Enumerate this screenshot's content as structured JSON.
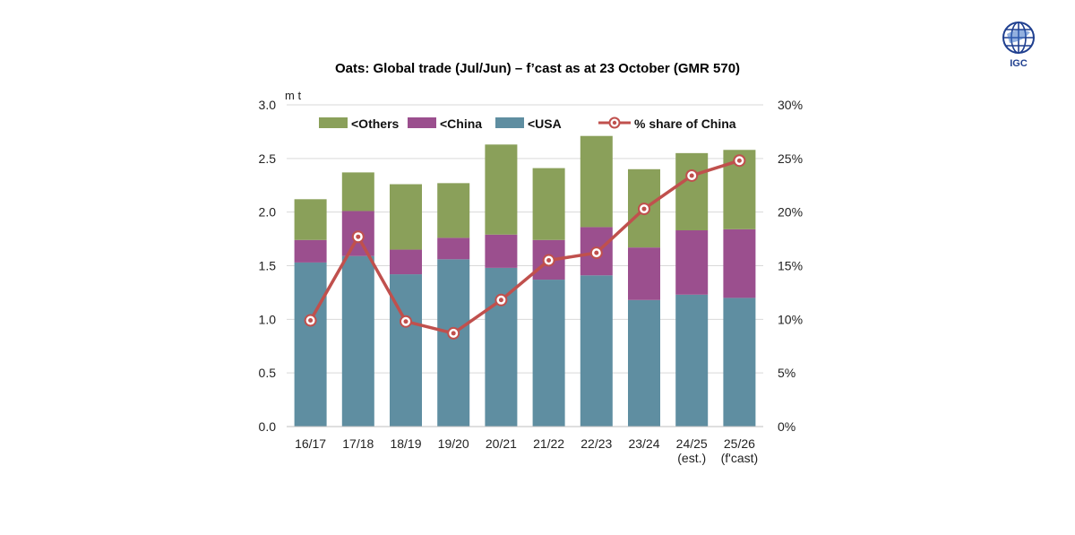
{
  "logo": {
    "text": "IGC"
  },
  "colors": {
    "others": "#8aa05a",
    "china": "#9b4f8e",
    "usa": "#5f8ea1",
    "share_line": "#c0504d",
    "grid": "#d9d9d9"
  },
  "chart_data": {
    "type": "bar",
    "stacked": true,
    "title": "Oats: Global trade (Jul/Jun) – f’cast as at 23 October (GMR 570)",
    "ylabel": "m t",
    "ylim": [
      0,
      3.0
    ],
    "y_ticks": [
      "0.0",
      "0.5",
      "1.0",
      "1.5",
      "2.0",
      "2.5",
      "3.0"
    ],
    "y2lim": [
      0,
      30
    ],
    "y2_ticks": [
      "0%",
      "5%",
      "10%",
      "15%",
      "20%",
      "25%",
      "30%"
    ],
    "grid": true,
    "legend_position": "top",
    "categories": [
      [
        "16/17"
      ],
      [
        "17/18"
      ],
      [
        "18/19"
      ],
      [
        "19/20"
      ],
      [
        "20/21"
      ],
      [
        "21/22"
      ],
      [
        "22/23"
      ],
      [
        "23/24"
      ],
      [
        "24/25",
        "(est.)"
      ],
      [
        "25/26",
        "(f'cast)"
      ]
    ],
    "series": [
      {
        "name": "<USA",
        "key": "usa",
        "values": [
          1.53,
          1.59,
          1.42,
          1.56,
          1.48,
          1.37,
          1.41,
          1.18,
          1.23,
          1.2
        ]
      },
      {
        "name": "<China",
        "key": "china",
        "values": [
          0.21,
          0.42,
          0.23,
          0.2,
          0.31,
          0.37,
          0.45,
          0.49,
          0.6,
          0.64
        ]
      },
      {
        "name": "<Others",
        "key": "others",
        "values": [
          0.38,
          0.36,
          0.61,
          0.51,
          0.84,
          0.67,
          0.85,
          0.73,
          0.72,
          0.74
        ]
      }
    ],
    "line_series": {
      "name": "% share of China",
      "axis": "right",
      "values": [
        9.9,
        17.7,
        9.8,
        8.7,
        11.8,
        15.5,
        16.2,
        20.3,
        23.4,
        24.8
      ]
    }
  }
}
